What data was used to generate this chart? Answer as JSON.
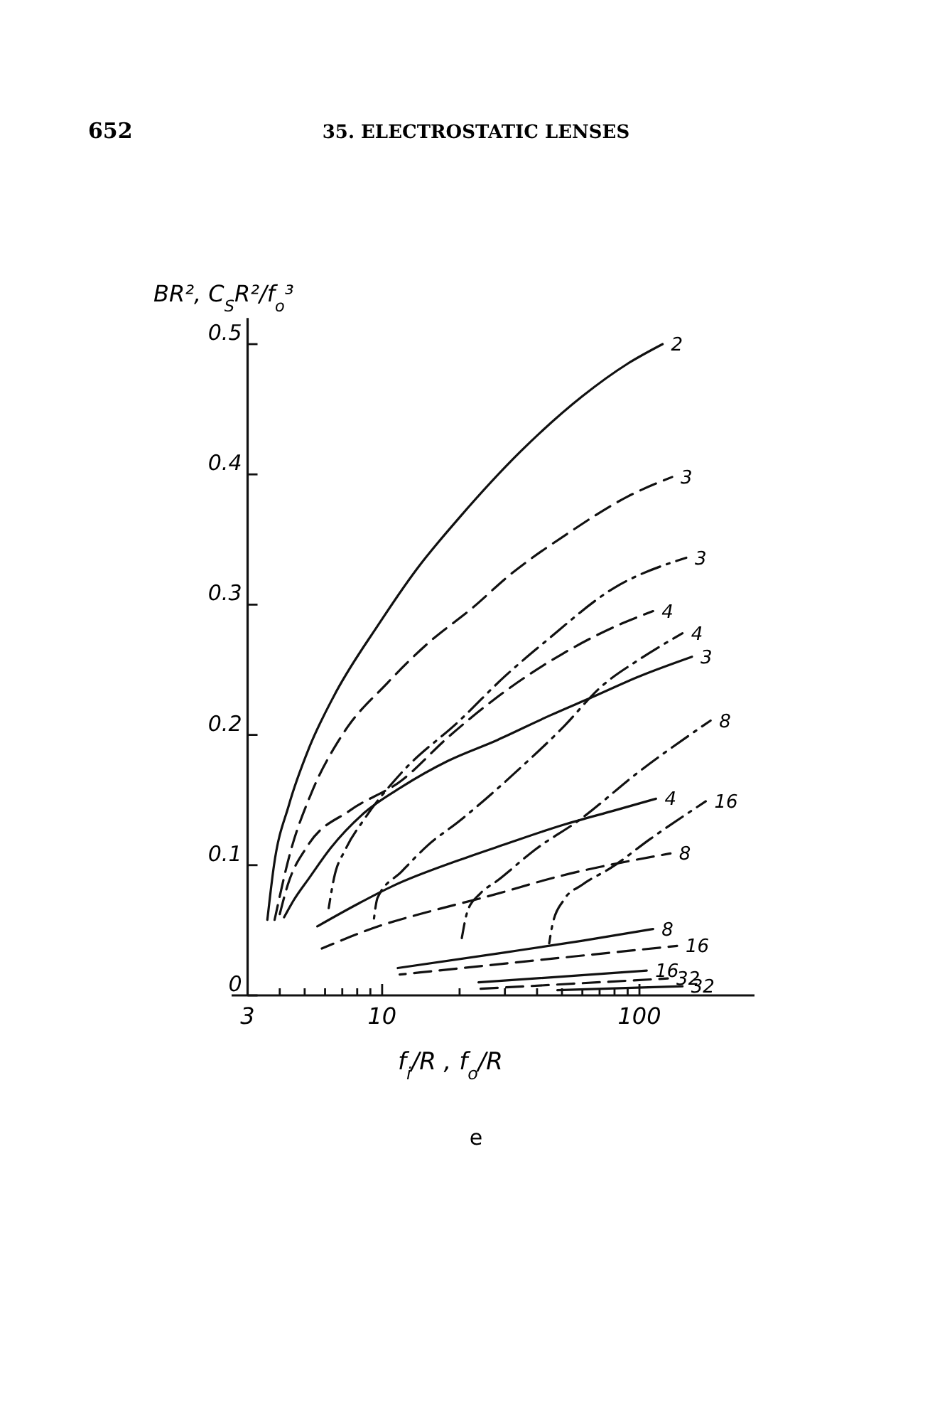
{
  "chart_data": {
    "type": "line",
    "title": "35. ELECTROSTATIC LENSES",
    "xlabel": "f$_{i}$/R , f$_{o}$/R",
    "ylabel": "BR², C$_{S}$R²/f$_{o}$³",
    "annotations": [
      "652",
      "e"
    ],
    "log": "x",
    "xlim": [
      2.6,
      280
    ],
    "ylim": [
      0,
      0.52
    ],
    "xticks": [
      3,
      {
        "value": 4,
        "label": null
      },
      {
        "value": 5,
        "label": null
      },
      {
        "value": 6,
        "label": null
      },
      {
        "value": 7,
        "label": null
      },
      {
        "value": 8,
        "label": null
      },
      {
        "value": 9,
        "label": null
      },
      10,
      {
        "value": 20,
        "label": null
      },
      {
        "value": 30,
        "label": null
      },
      {
        "value": 40,
        "label": null
      },
      {
        "value": 50,
        "label": null
      },
      {
        "value": 60,
        "label": null
      },
      {
        "value": 70,
        "label": null
      },
      {
        "value": 80,
        "label": null
      },
      {
        "value": 90,
        "label": null
      },
      100
    ],
    "yticks": [
      0,
      0.1,
      0.2,
      0.3,
      0.4,
      0.5
    ],
    "grid": false,
    "series": [
      {
        "name": "2",
        "color": "#111111",
        "line_style": "solid",
        "x": [
          3.58,
          3.8,
          4.34,
          5.2,
          6.5,
          9.7,
          13.6,
          20,
          34.7,
          60,
          90,
          123
        ],
        "values": [
          0.058,
          0.1,
          0.146,
          0.19,
          0.23,
          0.285,
          0.327,
          0.367,
          0.418,
          0.46,
          0.485,
          0.5
        ]
      },
      {
        "name": "3",
        "color": "#111111",
        "line_style": "dashed",
        "x": [
          3.82,
          4.4,
          5.3,
          7,
          10.5,
          15,
          22.6,
          31,
          53,
          90,
          134
        ],
        "values": [
          0.058,
          0.11,
          0.155,
          0.2,
          0.24,
          0.27,
          0.298,
          0.322,
          0.355,
          0.383,
          0.398
        ]
      },
      {
        "name": "3",
        "color": "#111111",
        "line_style": "dashdot",
        "x": [
          6.2,
          6.5,
          7.2,
          8.5,
          11.9,
          20,
          30,
          42.7,
          80,
          152
        ],
        "values": [
          0.067,
          0.09,
          0.112,
          0.135,
          0.171,
          0.211,
          0.245,
          0.271,
          0.313,
          0.336
        ]
      },
      {
        "name": "4",
        "color": "#111111",
        "line_style": "dashed",
        "x": [
          3.95,
          4.3,
          5.14,
          7.5,
          11.9,
          18,
          28,
          50,
          80,
          113
        ],
        "values": [
          0.058,
          0.085,
          0.115,
          0.142,
          0.165,
          0.198,
          0.229,
          0.262,
          0.283,
          0.295
        ]
      },
      {
        "name": "4",
        "color": "#111111",
        "line_style": "dashdot",
        "x": [
          9.27,
          9.6,
          11.9,
          15,
          20,
          34.6,
          50,
          71,
          100,
          147
        ],
        "values": [
          0.057,
          0.075,
          0.095,
          0.115,
          0.134,
          0.175,
          0.205,
          0.237,
          0.258,
          0.278
        ]
      },
      {
        "name": "3",
        "color": "#111111",
        "line_style": "solid",
        "x": [
          4.16,
          4.53,
          5.2,
          6.3,
          8.5,
          11.9,
          18,
          28,
          45,
          65.5,
          100,
          160
        ],
        "values": [
          0.06,
          0.073,
          0.09,
          0.113,
          0.14,
          0.16,
          0.18,
          0.196,
          0.215,
          0.229,
          0.245,
          0.26
        ]
      },
      {
        "name": "8",
        "color": "#111111",
        "line_style": "dashdot",
        "x": [
          20.4,
          21.5,
          24,
          28,
          40,
          57.8,
          100,
          189
        ],
        "values": [
          0.044,
          0.065,
          0.078,
          0.088,
          0.113,
          0.134,
          0.172,
          0.211
        ]
      },
      {
        "name": "16",
        "color": "#111111",
        "line_style": "dashdot",
        "x": [
          44.6,
          46,
          50.7,
          60,
          77.6,
          110,
          181
        ],
        "values": [
          0.04,
          0.055,
          0.073,
          0.085,
          0.098,
          0.12,
          0.149
        ]
      },
      {
        "name": "4",
        "color": "#111111",
        "line_style": "solid",
        "x": [
          5.6,
          8,
          11,
          20,
          30,
          50.7,
          80,
          116
        ],
        "values": [
          0.053,
          0.07,
          0.084,
          0.104,
          0.116,
          0.131,
          0.142,
          0.151
        ]
      },
      {
        "name": "8",
        "color": "#111111",
        "line_style": "dashed",
        "x": [
          5.83,
          10,
          15,
          25.7,
          50,
          132
        ],
        "values": [
          0.036,
          0.054,
          0.064,
          0.076,
          0.092,
          0.109
        ]
      },
      {
        "name": "8",
        "color": "#111111",
        "line_style": "solid",
        "x": [
          11.5,
          30,
          60,
          113
        ],
        "values": [
          0.021,
          0.033,
          0.042,
          0.051
        ]
      },
      {
        "name": "16",
        "color": "#111111",
        "line_style": "dashed",
        "x": [
          11.7,
          40,
          140
        ],
        "values": [
          0.016,
          0.027,
          0.038
        ]
      },
      {
        "name": "16",
        "color": "#111111",
        "line_style": "solid",
        "x": [
          23.7,
          106.7
        ],
        "values": [
          0.01,
          0.019
        ]
      },
      {
        "name": "32",
        "color": "#111111",
        "line_style": "dashed",
        "x": [
          23.7,
          129
        ],
        "values": [
          0.005,
          0.013
        ]
      },
      {
        "name": "32",
        "color": "#111111",
        "line_style": "solid",
        "x": [
          48,
          147
        ],
        "values": [
          0.004,
          0.007
        ]
      }
    ]
  }
}
